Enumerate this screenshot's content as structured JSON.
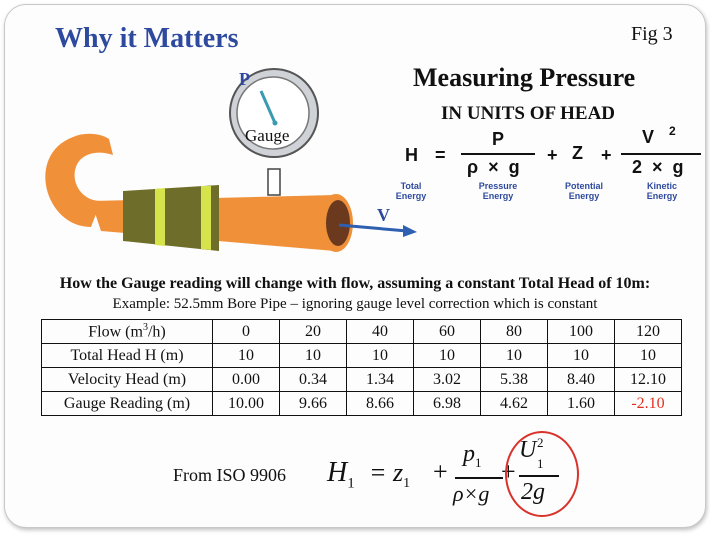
{
  "title": "Why it Matters",
  "fig_label": "Fig 3",
  "illustration": {
    "gauge_label": "Gauge",
    "pressure_label": "P",
    "velocity_label": "V",
    "colors": {
      "pipe": "#f0913a",
      "pipe_end": "#6b3a1e",
      "band": "#6e6e2a",
      "band_stripe": "#d6e34a",
      "arrow": "#2e5fb0"
    }
  },
  "pressure_equation": {
    "heading": "Measuring Pressure",
    "subheading": "IN UNITS OF HEAD",
    "H": "H",
    "equals": "=",
    "numerator_pressure": "P",
    "denominator_pressure": "ρ  ×  g",
    "plus1": "+",
    "Z": "Z",
    "plus2": "+",
    "numerator_kinetic": "V",
    "exponent": "2",
    "denominator_kinetic": "2  ×  g",
    "labels": {
      "total": [
        "Total",
        "Energy"
      ],
      "pressure": [
        "Pressure",
        "Energy"
      ],
      "potential": [
        "Potential",
        "Energy"
      ],
      "kinetic": [
        "Kinetic",
        "Energy"
      ]
    }
  },
  "caption": "How the Gauge reading will change with flow, assuming a constant Total Head of 10m:",
  "example": "Example: 52.5mm Bore Pipe – ignoring gauge level correction which is constant",
  "table": {
    "flow_label_pre": "Flow (m",
    "flow_label_sup": "3",
    "flow_label_post": "/h)",
    "flow_values": [
      "0",
      "20",
      "40",
      "60",
      "80",
      "100",
      "120"
    ],
    "rows": [
      {
        "label": "Total Head H (m)",
        "values": [
          "10",
          "10",
          "10",
          "10",
          "10",
          "10",
          "10"
        ]
      },
      {
        "label": "Velocity Head (m)",
        "values": [
          "0.00",
          "0.34",
          "1.34",
          "3.02",
          "5.38",
          "8.40",
          "12.10"
        ]
      },
      {
        "label": "Gauge Reading (m)",
        "values": [
          "10.00",
          "9.66",
          "8.66",
          "6.98",
          "4.62",
          "1.60",
          "-2.10"
        ]
      }
    ],
    "negative_color": "#e0311f"
  },
  "iso": {
    "label": "From ISO 9906",
    "H": "H",
    "H_sub": "1",
    "eq": "= z",
    "z_sub": "1",
    "plus": "+",
    "p": "p",
    "p_sub": "1",
    "denom": "ρ×g",
    "plus2": "+",
    "U": "U",
    "U_sub": "1",
    "U_sup": "2",
    "denom2": "2g",
    "circle_color": "#d9322a"
  }
}
